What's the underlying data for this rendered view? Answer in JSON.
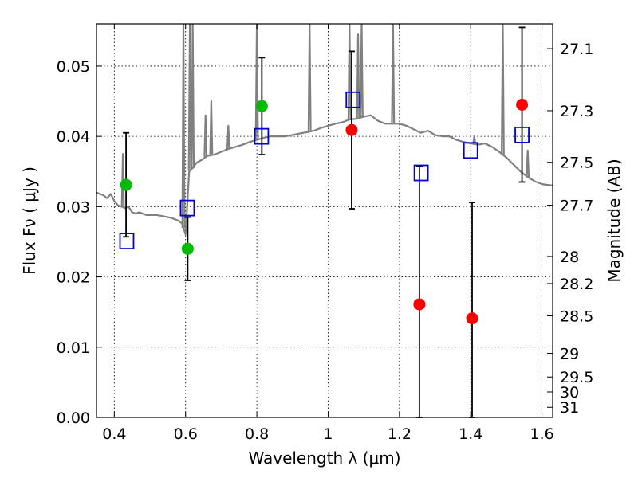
{
  "chart_data": {
    "type": "scatter",
    "title": "",
    "xlabel": "Wavelength  λ (μm)",
    "ylabel": "Flux  Fν  ( μJy )",
    "y2label": "Magnitude (AB)",
    "xlim": [
      0.35,
      1.63
    ],
    "ylim": [
      0.0,
      0.056
    ],
    "grid": true,
    "x_ticks": [
      0.4,
      0.6,
      0.8,
      1.0,
      1.2,
      1.4,
      1.6
    ],
    "x_tick_labels": [
      "0.4",
      "0.6",
      "0.8",
      "1",
      "1.2",
      "1.4",
      "1.6"
    ],
    "y_ticks": [
      0.0,
      0.01,
      0.02,
      0.03,
      0.04,
      0.05
    ],
    "y_tick_labels": [
      "0.00",
      "0.01",
      "0.02",
      "0.03",
      "0.04",
      "0.05"
    ],
    "y2_ticks": [
      {
        "label": "27.1",
        "value": 27.1
      },
      {
        "label": "27.3",
        "value": 27.3
      },
      {
        "label": "27.5",
        "value": 27.5
      },
      {
        "label": "27.7",
        "value": 27.7
      },
      {
        "label": "28",
        "value": 28.0
      },
      {
        "label": "28.2",
        "value": 28.2
      },
      {
        "label": "28.5",
        "value": 28.5
      },
      {
        "label": "29",
        "value": 29.0
      },
      {
        "label": "29.5",
        "value": 29.5
      },
      {
        "label": "30",
        "value": 30.0
      },
      {
        "label": "31",
        "value": 31.0
      }
    ],
    "colors": {
      "template": "#808080",
      "detected": "#00bb00",
      "non_detected": "#ff0000",
      "model": "#0000cc",
      "errorbar": "#000000"
    },
    "series": [
      {
        "marker": "line",
        "x": [
          0.35,
          0.36,
          0.37,
          0.38,
          0.39,
          0.4,
          0.41,
          0.42,
          0.43,
          0.44,
          0.45,
          0.46,
          0.47,
          0.48,
          0.49,
          0.5,
          0.52,
          0.54,
          0.56,
          0.57,
          0.58,
          0.59,
          0.6,
          0.61,
          0.62,
          0.63,
          0.64,
          0.65,
          0.66,
          0.68,
          0.7,
          0.72,
          0.74,
          0.76,
          0.78,
          0.8,
          0.82,
          0.84,
          0.86,
          0.88,
          0.9,
          0.92,
          0.94,
          0.96,
          0.98,
          1.0,
          1.02,
          1.04,
          1.06,
          1.08,
          1.1,
          1.12,
          1.14,
          1.16,
          1.18,
          1.2,
          1.22,
          1.24,
          1.26,
          1.28,
          1.3,
          1.32,
          1.34,
          1.36,
          1.38,
          1.4,
          1.42,
          1.44,
          1.46,
          1.48,
          1.5,
          1.52,
          1.54,
          1.56,
          1.58,
          1.6,
          1.63
        ],
        "y": [
          0.032,
          0.0318,
          0.0316,
          0.0312,
          0.0318,
          0.0308,
          0.0302,
          0.03,
          0.0298,
          0.03,
          0.0292,
          0.029,
          0.0292,
          0.029,
          0.0288,
          0.0288,
          0.0288,
          0.0286,
          0.0284,
          0.0282,
          0.028,
          0.0276,
          0.026,
          0.035,
          0.0355,
          0.0362,
          0.0365,
          0.0368,
          0.0372,
          0.0374,
          0.0378,
          0.0382,
          0.0385,
          0.0388,
          0.0392,
          0.0395,
          0.0398,
          0.04,
          0.04,
          0.04,
          0.0402,
          0.0404,
          0.0406,
          0.0408,
          0.0412,
          0.0415,
          0.0418,
          0.042,
          0.0424,
          0.0425,
          0.0428,
          0.043,
          0.0422,
          0.0418,
          0.0418,
          0.0418,
          0.0415,
          0.041,
          0.0405,
          0.0408,
          0.0402,
          0.04,
          0.04,
          0.0395,
          0.0392,
          0.039,
          0.0388,
          0.039,
          0.0385,
          0.0378,
          0.037,
          0.036,
          0.035,
          0.0342,
          0.0336,
          0.0332,
          0.033
        ]
      },
      {
        "marker": "filled-circle",
        "x": [
          0.433,
          0.606,
          0.814
        ],
        "y": [
          0.0331,
          0.024,
          0.0443
        ],
        "yerr_low": [
          0.0257,
          0.0195,
          0.0374
        ],
        "yerr_high": [
          0.0405,
          0.0285,
          0.0512
        ]
      },
      {
        "marker": "filled-circle",
        "x": [
          1.066,
          1.256,
          1.404,
          1.544
        ],
        "y": [
          0.0409,
          0.0161,
          0.0141,
          0.0445
        ],
        "yerr_low": [
          0.0297,
          0.0,
          0.0,
          0.0335
        ],
        "yerr_high": [
          0.0521,
          0.0357,
          0.0306,
          0.0555
        ]
      },
      {
        "marker": "open-square",
        "x": [
          0.435,
          0.605,
          0.813,
          1.07,
          1.261,
          1.4,
          1.544
        ],
        "y": [
          0.0251,
          0.0298,
          0.04,
          0.0452,
          0.0348,
          0.038,
          0.0402
        ]
      }
    ],
    "template_spikes": [
      {
        "x": 0.424,
        "y": 0.0375
      },
      {
        "x": 0.594,
        "y": 0.056
      },
      {
        "x": 0.612,
        "y": 0.056
      },
      {
        "x": 0.62,
        "y": 0.056
      },
      {
        "x": 0.656,
        "y": 0.043
      },
      {
        "x": 0.672,
        "y": 0.045
      },
      {
        "x": 0.72,
        "y": 0.0415
      },
      {
        "x": 0.8,
        "y": 0.056
      },
      {
        "x": 0.948,
        "y": 0.056
      },
      {
        "x": 1.06,
        "y": 0.056
      },
      {
        "x": 1.084,
        "y": 0.0545
      },
      {
        "x": 1.094,
        "y": 0.056
      },
      {
        "x": 1.182,
        "y": 0.056
      },
      {
        "x": 1.41,
        "y": 0.04
      },
      {
        "x": 1.49,
        "y": 0.056
      },
      {
        "x": 1.56,
        "y": 0.038
      }
    ]
  }
}
